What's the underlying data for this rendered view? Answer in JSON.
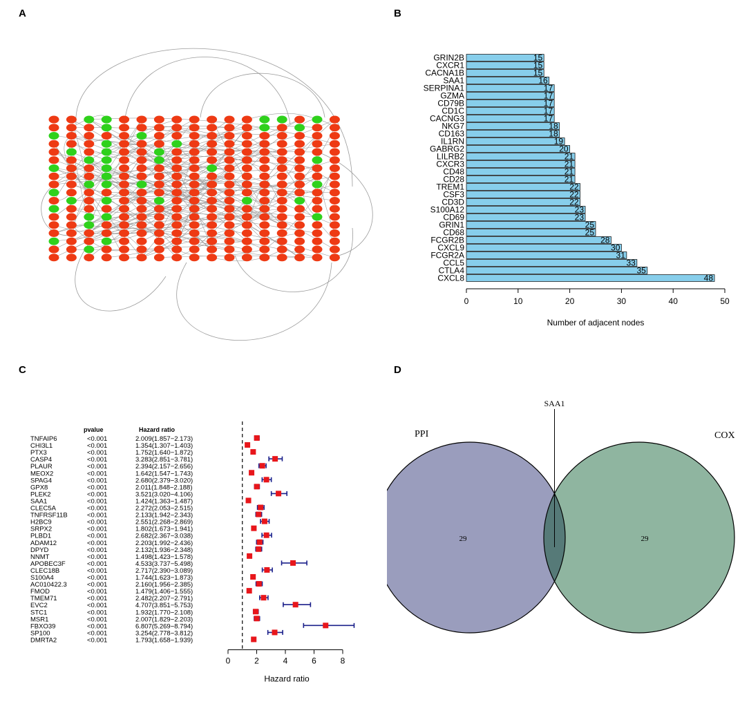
{
  "panels": {
    "a": "A",
    "b": "B",
    "c": "C",
    "d": "D"
  },
  "colors": {
    "up": "#ee3a14",
    "down": "#2fd11c",
    "bar": "#87ceeb",
    "hr_box": "#e8161b",
    "ci": "#1a1f8a",
    "ppi_fill": "#9a9dbd",
    "cox_fill": "#8fb5a0",
    "overlap_fill": "#567a78"
  },
  "chart_data": [
    {
      "id": "network",
      "type": "network",
      "description_none": true,
      "columns": 17,
      "rows": 18,
      "node_colors_by_column": [
        [
          "up",
          "up",
          "down",
          "up",
          "up",
          "up",
          "down",
          "up",
          "up",
          "down",
          "up",
          "down",
          "up",
          "up",
          "up",
          "down",
          "up",
          "up"
        ],
        [
          "up",
          "up",
          "up",
          "up",
          "down",
          "up",
          "up",
          "up",
          "up",
          "up",
          "down",
          "up",
          "up",
          "up",
          "up",
          "up",
          "up",
          "up"
        ],
        [
          "down",
          "up",
          "up",
          "up",
          "up",
          "down",
          "up",
          "up",
          "down",
          "up",
          "up",
          "up",
          "down",
          "down",
          "up",
          "up",
          "down",
          "up"
        ],
        [
          "down",
          "down",
          "up",
          "down",
          "down",
          "down",
          "down",
          "down",
          "down",
          "up",
          "down",
          "up",
          "down",
          "up",
          "up",
          "down",
          "up",
          "up"
        ],
        [
          "up",
          "up",
          "up",
          "up",
          "up",
          "up",
          "up",
          "up",
          "up",
          "up",
          "up",
          "up",
          "up",
          "up",
          "up",
          "up",
          "up",
          "up"
        ],
        [
          "up",
          "up",
          "down",
          "up",
          "up",
          "up",
          "up",
          "up",
          "down",
          "up",
          "up",
          "up",
          "up",
          "up",
          "up",
          "up",
          "up",
          "up"
        ],
        [
          "up",
          "up",
          "up",
          "up",
          "down",
          "down",
          "up",
          "up",
          "up",
          "up",
          "down",
          "up",
          "up",
          "up",
          "up",
          "up",
          "up",
          "up"
        ],
        [
          "up",
          "up",
          "up",
          "down",
          "up",
          "up",
          "up",
          "up",
          "up",
          "up",
          "up",
          "up",
          "up",
          "up",
          "up",
          "up",
          "up",
          "up"
        ],
        [
          "up",
          "up",
          "up",
          "up",
          "up",
          "up",
          "up",
          "up",
          "up",
          "up",
          "up",
          "up",
          "up",
          "up",
          "up",
          "up",
          "up",
          "up"
        ],
        [
          "up",
          "up",
          "up",
          "up",
          "up",
          "up",
          "down",
          "up",
          "up",
          "up",
          "up",
          "up",
          "up",
          "up",
          "up",
          "up",
          "up",
          "up"
        ],
        [
          "up",
          "up",
          "up",
          "up",
          "up",
          "up",
          "up",
          "up",
          "up",
          "up",
          "up",
          "up",
          "up",
          "up",
          "up",
          "up",
          "up",
          "up"
        ],
        [
          "up",
          "up",
          "up",
          "up",
          "up",
          "up",
          "up",
          "up",
          "up",
          "up",
          "down",
          "up",
          "up",
          "up",
          "up",
          "up",
          "up",
          "up"
        ],
        [
          "down",
          "down",
          "up",
          "up",
          "up",
          "up",
          "up",
          "up",
          "up",
          "up",
          "up",
          "up",
          "up",
          "up",
          "up",
          "up",
          "up",
          "up"
        ],
        [
          "down",
          "up",
          "up",
          "up",
          "up",
          "up",
          "up",
          "up",
          "up",
          "up",
          "up",
          "up",
          "up",
          "up",
          "up",
          "up",
          "up",
          "up"
        ],
        [
          "up",
          "down",
          "up",
          "up",
          "up",
          "up",
          "up",
          "up",
          "up",
          "up",
          "down",
          "up",
          "up",
          "up",
          "up",
          "up",
          "up",
          "up"
        ],
        [
          "down",
          "up",
          "up",
          "up",
          "up",
          "down",
          "up",
          "up",
          "down",
          "up",
          "up",
          "up",
          "down",
          "up",
          "up",
          "up",
          "up",
          "up"
        ],
        [
          "up",
          "up",
          "up",
          "up",
          "up",
          "up",
          "up",
          "up",
          "up",
          "up",
          "up",
          "up",
          "up",
          "up",
          "up",
          "up",
          "up",
          "up"
        ]
      ]
    },
    {
      "id": "degree",
      "type": "bar",
      "orientation": "horizontal",
      "categories": [
        "GRIN2B",
        "CXCR1",
        "CACNA1B",
        "SAA1",
        "SERPINA1",
        "GZMA",
        "CD79B",
        "CD1C",
        "CACNG3",
        "NKG7",
        "CD163",
        "IL1RN",
        "GABRG2",
        "LILRB2",
        "CXCR3",
        "CD48",
        "CD28",
        "TREM1",
        "CSF3",
        "CD3D",
        "S100A12",
        "CD69",
        "GRIN1",
        "CD68",
        "FCGR2B",
        "CXCL9",
        "FCGR2A",
        "CCL5",
        "CTLA4",
        "CXCL8"
      ],
      "values": [
        15,
        15,
        15,
        16,
        17,
        17,
        17,
        17,
        17,
        18,
        18,
        19,
        20,
        21,
        21,
        21,
        21,
        22,
        22,
        22,
        23,
        23,
        25,
        25,
        28,
        30,
        31,
        33,
        35,
        48
      ],
      "value_labels": [
        "15",
        "15",
        "15",
        "16",
        "17",
        "17",
        "17",
        "17",
        "17",
        "18",
        "18",
        "19",
        "20",
        "21",
        "21",
        "21",
        "21",
        "22",
        "22",
        "22",
        "23",
        "23",
        "25",
        "25",
        "28",
        "30",
        "31",
        "33",
        "35",
        "48"
      ],
      "xlabel": "Number of adjacent nodes",
      "xlim": [
        0,
        50
      ],
      "xticks": [
        0,
        10,
        20,
        30,
        40,
        50
      ],
      "xtick_labels": [
        "0",
        "10",
        "20",
        "30",
        "40",
        "50"
      ]
    },
    {
      "id": "forest",
      "type": "forest",
      "header_pvalue": "pvalue",
      "header_hr": "Hazard ratio",
      "genes": [
        "TNFAIP6",
        "CHI3L1",
        "PTX3",
        "CASP4",
        "PLAUR",
        "MEOX2",
        "SPAG4",
        "GPX8",
        "PLEK2",
        "SAA1",
        "CLEC5A",
        "TNFRSF11B",
        "H2BC9",
        "SRPX2",
        "PLBD1",
        "ADAM12",
        "DPYD",
        "NNMT",
        "APOBEC3F",
        "CLEC18B",
        "S100A4",
        "AC010422.3",
        "FMOD",
        "TMEM71",
        "EVC2",
        "STC1",
        "MSR1",
        "FBXO39",
        "SP100",
        "DMRTA2"
      ],
      "pvalues": [
        "<0.001",
        "<0.001",
        "<0.001",
        "<0.001",
        "<0.001",
        "<0.001",
        "<0.001",
        "<0.001",
        "<0.001",
        "<0.001",
        "<0.001",
        "<0.001",
        "<0.001",
        "<0.001",
        "<0.001",
        "<0.001",
        "<0.001",
        "<0.001",
        "<0.001",
        "<0.001",
        "<0.001",
        "<0.001",
        "<0.001",
        "<0.001",
        "<0.001",
        "<0.001",
        "<0.001",
        "<0.001",
        "<0.001",
        "<0.001"
      ],
      "hr_text": [
        "2.009(1.857−2.173)",
        "1.354(1.307−1.403)",
        "1.752(1.640−1.872)",
        "3.283(2.851−3.781)",
        "2.394(2.157−2.656)",
        "1.642(1.547−1.743)",
        "2.680(2.379−3.020)",
        "2.011(1.848−2.188)",
        "3.521(3.020−4.106)",
        "1.424(1.363−1.487)",
        "2.272(2.053−2.515)",
        "2.133(1.942−2.343)",
        "2.551(2.268−2.869)",
        "1.802(1.673−1.941)",
        "2.682(2.367−3.038)",
        "2.203(1.992−2.436)",
        "2.132(1.936−2.348)",
        "1.498(1.423−1.578)",
        "4.533(3.737−5.498)",
        "2.717(2.390−3.089)",
        "1.744(1.623−1.873)",
        "2.160(1.956−2.385)",
        "1.479(1.406−1.555)",
        "2.482(2.207−2.791)",
        "4.707(3.851−5.753)",
        "1.932(1.770−2.108)",
        "2.007(1.829−2.203)",
        "6.807(5.269−8.794)",
        "3.254(2.778−3.812)",
        "1.793(1.658−1.939)"
      ],
      "hr": [
        2.009,
        1.354,
        1.752,
        3.283,
        2.394,
        1.642,
        2.68,
        2.011,
        3.521,
        1.424,
        2.272,
        2.133,
        2.551,
        1.802,
        2.682,
        2.203,
        2.132,
        1.498,
        4.533,
        2.717,
        1.744,
        2.16,
        1.479,
        2.482,
        4.707,
        1.932,
        2.007,
        6.807,
        3.254,
        1.793
      ],
      "lower": [
        1.857,
        1.307,
        1.64,
        2.851,
        2.157,
        1.547,
        2.379,
        1.848,
        3.02,
        1.363,
        2.053,
        1.942,
        2.268,
        1.673,
        2.367,
        1.992,
        1.936,
        1.423,
        3.737,
        2.39,
        1.623,
        1.956,
        1.406,
        2.207,
        3.851,
        1.77,
        1.829,
        5.269,
        2.778,
        1.658
      ],
      "upper": [
        2.173,
        1.403,
        1.872,
        3.781,
        2.656,
        1.743,
        3.02,
        2.188,
        4.106,
        1.487,
        2.515,
        2.343,
        2.869,
        1.941,
        3.038,
        2.436,
        2.348,
        1.578,
        5.498,
        3.089,
        1.873,
        2.385,
        1.555,
        2.791,
        5.753,
        2.108,
        2.203,
        8.794,
        3.812,
        1.939
      ],
      "xlabel": "Hazard ratio",
      "xlim": [
        0,
        8
      ],
      "xticks": [
        0,
        2,
        4,
        6,
        8
      ],
      "xtick_labels": [
        "0",
        "2",
        "4",
        "6",
        "8"
      ],
      "reference_line": 1
    },
    {
      "id": "venn",
      "type": "venn",
      "sets": [
        "PPI",
        "COX"
      ],
      "only_counts": [
        "29",
        "29"
      ],
      "intersection_label": "SAA1"
    }
  ]
}
